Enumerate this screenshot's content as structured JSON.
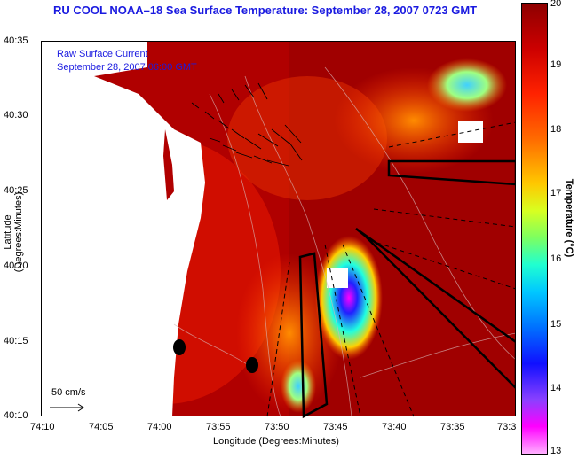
{
  "title": "RU COOL  NOAA–18  Sea Surface Temperature:  September 28, 2007 0723 GMT",
  "overlay": {
    "line1": "Raw Surface Current",
    "line2": "September 28, 2007 06:00 GMT"
  },
  "scale_label": "50 cm/s",
  "axes": {
    "xlabel": "Longitude (Degrees:Minutes)",
    "ylabel": "Latitude (Degrees:Minutes)",
    "xticks": [
      "74:10",
      "74:05",
      "74:00",
      "73:55",
      "73:50",
      "73:45",
      "73:40",
      "73:35",
      "73:3"
    ],
    "yticks": [
      "40:35",
      "40:30",
      "40:25",
      "40:20",
      "40:15",
      "40:10"
    ]
  },
  "colorbar": {
    "label": "Temperature (°C)",
    "ticks": [
      "20",
      "19",
      "18",
      "17",
      "16",
      "15",
      "14",
      "13"
    ]
  },
  "colors": {
    "land": "#ffffff",
    "warm_sea": "#a40000",
    "title": "#1a1ae0"
  }
}
